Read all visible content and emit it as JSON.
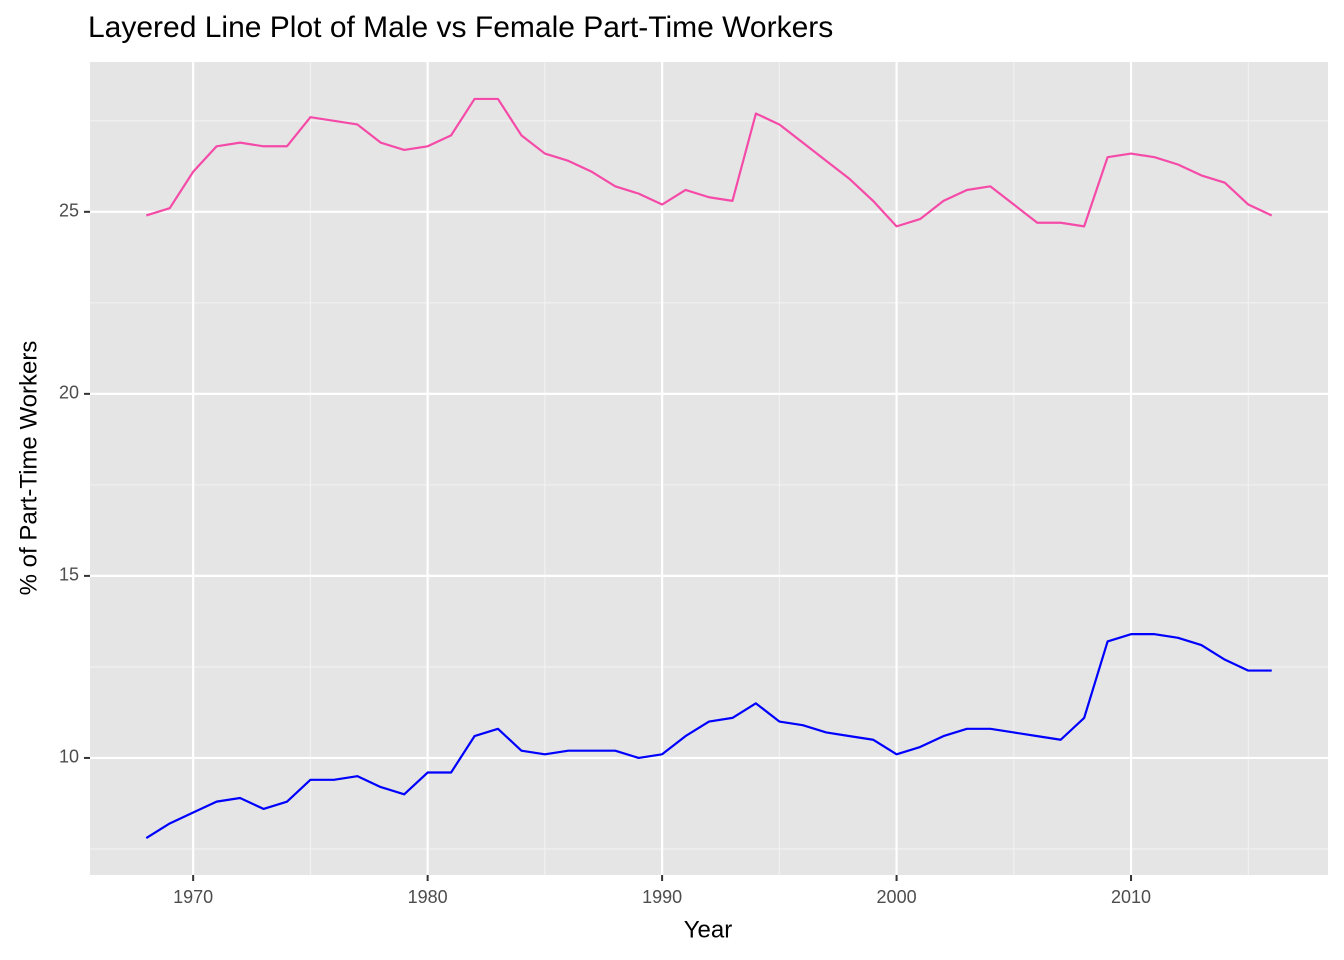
{
  "chart_data": {
    "type": "line",
    "title": "Layered Line Plot of Male vs Female Part-Time Workers",
    "x_label": "Year",
    "y_label": "% of Part-Time Workers",
    "x": [
      1968,
      1969,
      1970,
      1971,
      1972,
      1973,
      1974,
      1975,
      1976,
      1977,
      1978,
      1979,
      1980,
      1981,
      1982,
      1983,
      1984,
      1985,
      1986,
      1987,
      1988,
      1989,
      1990,
      1991,
      1992,
      1993,
      1994,
      1995,
      1996,
      1997,
      1998,
      1999,
      2000,
      2001,
      2002,
      2003,
      2004,
      2005,
      2006,
      2007,
      2008,
      2009,
      2010,
      2011,
      2012,
      2013,
      2014,
      2015,
      2016
    ],
    "series": [
      {
        "color": "#f54ba8",
        "values": [
          24.9,
          25.1,
          26.1,
          26.8,
          26.9,
          26.8,
          26.8,
          27.6,
          27.5,
          27.4,
          26.9,
          26.7,
          26.8,
          27.1,
          28.1,
          28.1,
          27.1,
          26.6,
          26.4,
          26.1,
          25.7,
          25.5,
          25.2,
          25.6,
          25.4,
          25.3,
          27.7,
          27.4,
          26.9,
          26.4,
          25.9,
          25.3,
          24.6,
          24.8,
          25.3,
          25.6,
          25.7,
          25.2,
          24.7,
          24.7,
          24.6,
          26.5,
          26.6,
          26.5,
          26.3,
          26.0,
          25.8,
          25.2,
          24.9
        ]
      },
      {
        "color": "#0000ff",
        "values": [
          7.8,
          8.2,
          8.5,
          8.8,
          8.9,
          8.6,
          8.8,
          9.4,
          9.4,
          9.5,
          9.2,
          9.0,
          9.6,
          9.6,
          10.6,
          10.8,
          10.2,
          10.1,
          10.2,
          10.2,
          10.2,
          10.0,
          10.1,
          10.6,
          11.0,
          11.1,
          11.5,
          11.0,
          10.9,
          10.7,
          10.6,
          10.5,
          10.1,
          10.3,
          10.6,
          10.8,
          10.8,
          10.7,
          10.6,
          10.5,
          11.1,
          13.2,
          13.4,
          13.4,
          13.3,
          13.1,
          12.7,
          12.4,
          12.4
        ]
      }
    ],
    "xlim": [
      1965.6,
      2018.4
    ],
    "ylim": [
      6.785,
      29.115
    ],
    "xticks": [
      1970,
      1980,
      1990,
      2000,
      2010
    ],
    "yticks": [
      10,
      15,
      20,
      25
    ],
    "grid": true
  }
}
